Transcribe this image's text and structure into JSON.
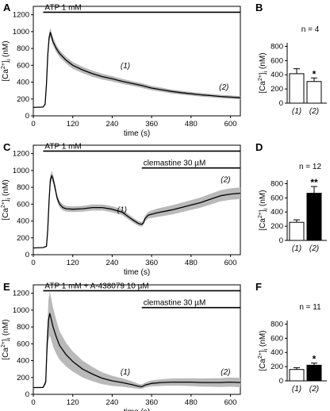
{
  "chart_data": [
    {
      "type": "line",
      "panel": "A",
      "xlabel": "time  (s)",
      "ylabel": "[Ca2+]i (nM)",
      "ylabel_parts": [
        "[Ca",
        "2+",
        "]",
        "i",
        " (nM)"
      ],
      "xlim": [
        0,
        630
      ],
      "ylim": [
        0,
        1300
      ],
      "xticks": [
        0,
        120,
        240,
        360,
        480,
        600
      ],
      "yticks": [
        0,
        200,
        400,
        600,
        800,
        1000,
        1200
      ],
      "grid": false,
      "bars": [
        {
          "label": "ATP 1 mM",
          "x": [
            30,
            630
          ],
          "level": 1230
        }
      ],
      "timepoint_labels": [
        {
          "text": "(1)",
          "x": 280,
          "y": 565
        },
        {
          "text": "(2)",
          "x": 580,
          "y": 310
        }
      ],
      "series": [
        {
          "x": [
            0,
            30,
            36,
            40,
            44,
            48,
            52,
            60,
            70,
            80,
            100,
            120,
            150,
            180,
            210,
            240,
            270,
            300,
            330,
            360,
            390,
            420,
            450,
            480,
            510,
            540,
            570,
            600,
            630
          ],
          "y": [
            100,
            105,
            140,
            380,
            720,
            930,
            990,
            880,
            800,
            740,
            660,
            600,
            545,
            500,
            465,
            440,
            410,
            385,
            360,
            330,
            310,
            290,
            275,
            262,
            250,
            240,
            230,
            222,
            215
          ],
          "err": [
            0,
            0,
            15,
            45,
            60,
            60,
            55,
            50,
            45,
            42,
            40,
            40,
            38,
            36,
            34,
            32,
            30,
            28,
            27,
            26,
            25,
            24,
            23,
            22,
            21,
            20,
            20,
            20,
            20
          ]
        }
      ]
    },
    {
      "type": "bar",
      "panel": "B",
      "n_label": "n = 4",
      "categories": [
        "(1)",
        "(2)"
      ],
      "values": [
        415,
        305
      ],
      "errors": [
        70,
        50
      ],
      "fills": [
        "#ffffff",
        "#ffffff"
      ],
      "significance": [
        "",
        "*"
      ],
      "ylabel": "[Ca2+]i (nM)",
      "ylabel_parts": [
        "[Ca",
        "2+",
        "]",
        "i",
        " (nM)"
      ],
      "ylim": [
        0,
        850
      ],
      "yticks": [
        0,
        200,
        400,
        600,
        800
      ]
    },
    {
      "type": "line",
      "panel": "C",
      "xlabel": "time  (s)",
      "ylabel": "[Ca2+]i (nM)",
      "ylabel_parts": [
        "[Ca",
        "2+",
        "]",
        "i",
        " (nM)"
      ],
      "xlim": [
        0,
        630
      ],
      "ylim": [
        0,
        1300
      ],
      "xticks": [
        0,
        120,
        240,
        360,
        480,
        600
      ],
      "yticks": [
        0,
        200,
        400,
        600,
        800,
        1000,
        1200
      ],
      "grid": false,
      "bars": [
        {
          "label": "ATP 1 mM",
          "x": [
            30,
            630
          ],
          "level": 1230
        },
        {
          "label": "clemastine 30 µM",
          "x": [
            330,
            630
          ],
          "level": 1030
        }
      ],
      "timepoint_labels": [
        {
          "text": "(1)",
          "x": 270,
          "y": 505
        },
        {
          "text": "(2)",
          "x": 585,
          "y": 860
        }
      ],
      "series": [
        {
          "x": [
            0,
            30,
            40,
            44,
            48,
            52,
            56,
            60,
            66,
            72,
            80,
            90,
            100,
            120,
            150,
            180,
            210,
            240,
            270,
            300,
            320,
            330,
            335,
            340,
            350,
            360,
            380,
            400,
            420,
            450,
            480,
            510,
            540,
            570,
            600,
            630
          ],
          "y": [
            80,
            85,
            100,
            300,
            650,
            890,
            940,
            900,
            800,
            680,
            600,
            560,
            545,
            540,
            545,
            560,
            560,
            540,
            505,
            420,
            370,
            360,
            380,
            430,
            470,
            480,
            500,
            515,
            530,
            560,
            590,
            620,
            660,
            700,
            720,
            730
          ],
          "err": [
            0,
            0,
            10,
            40,
            60,
            55,
            55,
            50,
            45,
            40,
            38,
            36,
            34,
            34,
            34,
            36,
            36,
            36,
            34,
            30,
            28,
            28,
            30,
            34,
            40,
            45,
            50,
            52,
            54,
            56,
            58,
            60,
            64,
            66,
            68,
            70
          ]
        }
      ]
    },
    {
      "type": "bar",
      "panel": "D",
      "n_label": "n = 12",
      "categories": [
        "(1)",
        "(2)"
      ],
      "values": [
        255,
        665
      ],
      "errors": [
        35,
        95
      ],
      "fills": [
        "#ffffff",
        "#000000"
      ],
      "significance": [
        "",
        "**"
      ],
      "ylabel": "[Ca2+]i (nM)",
      "ylabel_parts": [
        "[Ca",
        "2+",
        "]",
        "i",
        " (nM)"
      ],
      "ylim": [
        0,
        850
      ],
      "yticks": [
        0,
        200,
        400,
        600,
        800
      ]
    },
    {
      "type": "line",
      "panel": "E",
      "xlabel": "time  (s)",
      "ylabel": "[Ca2+]i (nM)",
      "ylabel_parts": [
        "[Ca",
        "2+",
        "]",
        "i",
        " (nM)"
      ],
      "xlim": [
        0,
        630
      ],
      "ylim": [
        0,
        1300
      ],
      "xticks": [
        0,
        120,
        240,
        360,
        480,
        600
      ],
      "yticks": [
        0,
        200,
        400,
        600,
        800,
        1000,
        1200
      ],
      "grid": false,
      "bars": [
        {
          "label": "ATP 1 mM + A-438079 10 µM",
          "x": [
            30,
            630
          ],
          "level": 1230
        },
        {
          "label": "clemastine 30 µM",
          "x": [
            330,
            630
          ],
          "level": 1030
        }
      ],
      "timepoint_labels": [
        {
          "text": "(1)",
          "x": 280,
          "y": 235
        },
        {
          "text": "(2)",
          "x": 585,
          "y": 235
        }
      ],
      "series": [
        {
          "x": [
            0,
            30,
            38,
            42,
            46,
            50,
            54,
            60,
            70,
            80,
            100,
            120,
            150,
            180,
            210,
            240,
            270,
            300,
            320,
            330,
            340,
            360,
            390,
            420,
            450,
            480,
            510,
            540,
            570,
            600,
            630
          ],
          "y": [
            80,
            82,
            150,
            600,
            880,
            960,
            900,
            800,
            680,
            580,
            470,
            390,
            300,
            240,
            190,
            160,
            140,
            115,
            95,
            90,
            110,
            130,
            140,
            145,
            145,
            145,
            140,
            140,
            140,
            145,
            140
          ],
          "err": [
            0,
            0,
            40,
            150,
            240,
            260,
            250,
            230,
            200,
            170,
            140,
            120,
            100,
            85,
            70,
            60,
            50,
            40,
            30,
            28,
            30,
            35,
            40,
            42,
            44,
            46,
            48,
            50,
            52,
            55,
            55
          ]
        }
      ]
    },
    {
      "type": "bar",
      "panel": "F",
      "n_label": "n = 11",
      "categories": [
        "(1)",
        "(2)"
      ],
      "values": [
        160,
        220
      ],
      "errors": [
        25,
        30
      ],
      "fills": [
        "#ffffff",
        "#000000"
      ],
      "significance": [
        "",
        "*"
      ],
      "ylabel": "[Ca2+]i (nM)",
      "ylabel_parts": [
        "[Ca",
        "2+",
        "]",
        "i",
        " (nM)"
      ],
      "ylim": [
        0,
        850
      ],
      "yticks": [
        0,
        200,
        400,
        600,
        800
      ]
    }
  ]
}
